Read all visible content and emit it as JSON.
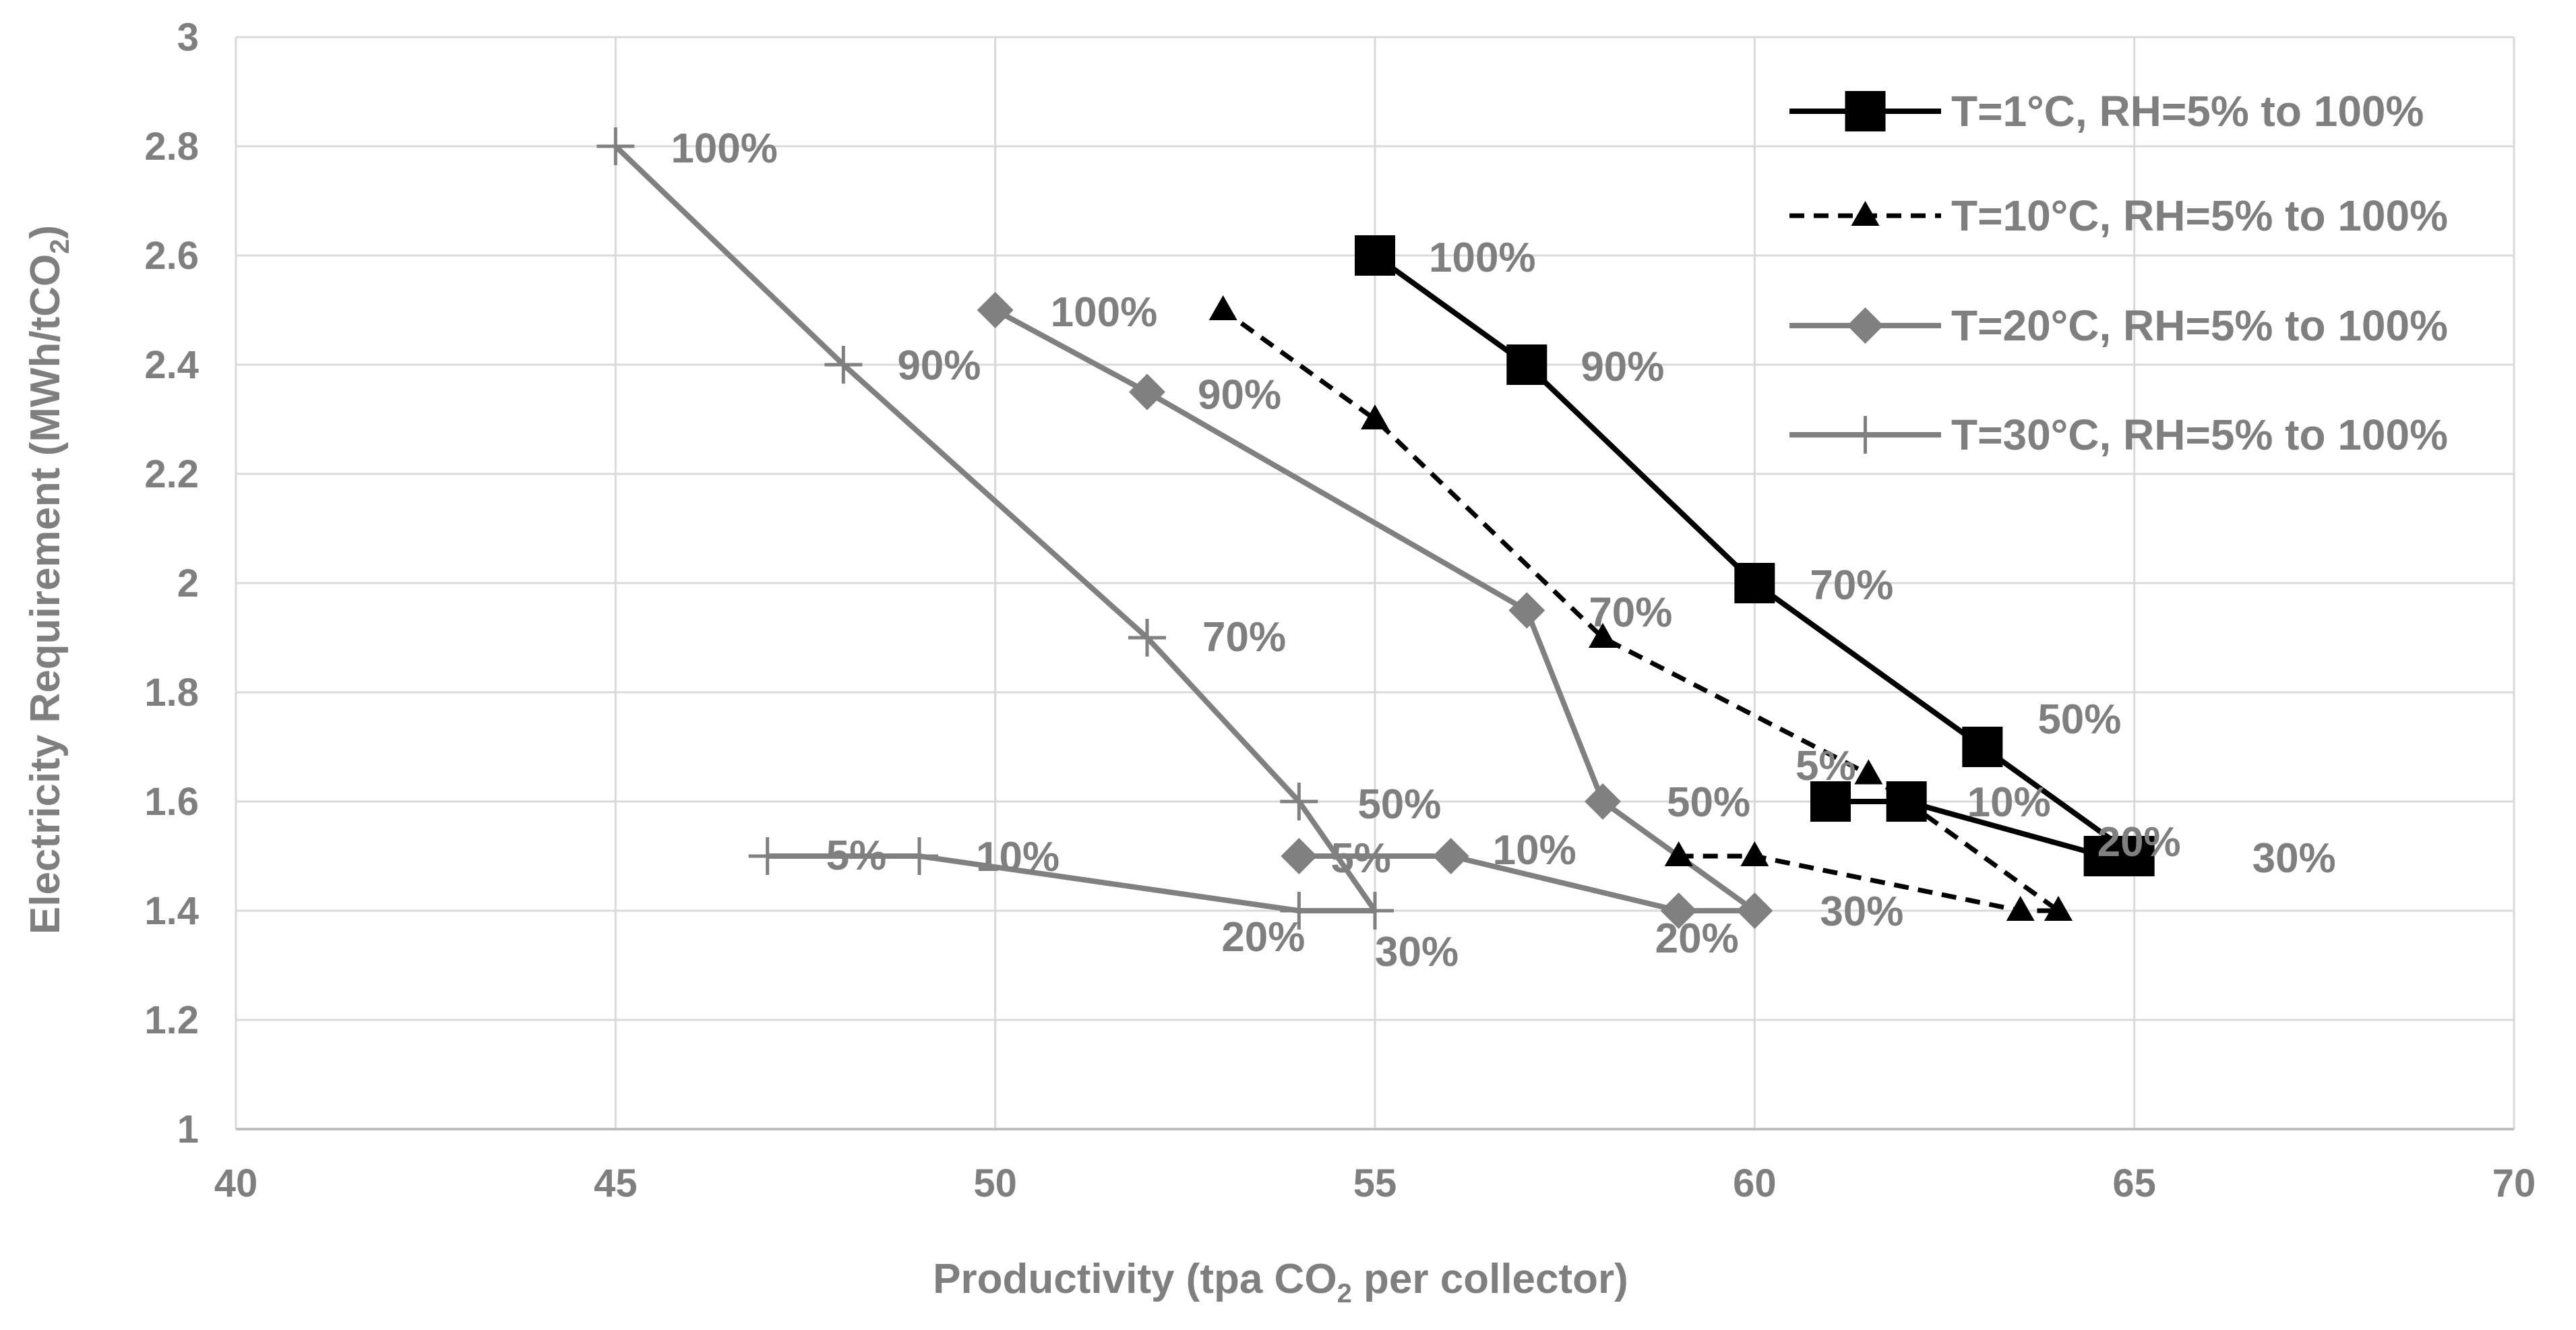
{
  "chart_data": {
    "type": "scatter",
    "title": "",
    "xlabel": {
      "before": "Productivity (tpa CO",
      "sub": "2",
      "after": " per collector)"
    },
    "ylabel": {
      "before": "Electricity Requirement (MWh/tCO",
      "sub": "2",
      "after": ")"
    },
    "xlim": [
      40,
      70
    ],
    "ylim": [
      1,
      3
    ],
    "x_ticks": [
      40,
      45,
      50,
      55,
      60,
      65,
      70
    ],
    "y_ticks": [
      1,
      1.2,
      1.4,
      1.6,
      1.8,
      2,
      2.2,
      2.4,
      2.6,
      2.8,
      3
    ],
    "grid": true,
    "legend_position": "top-right",
    "series": [
      {
        "name": "T=1°C, RH=5% to 100%",
        "color": "#000000",
        "line": "solid",
        "marker": "square",
        "points": [
          {
            "x": 61,
            "y": 1.6,
            "label": "5%"
          },
          {
            "x": 62,
            "y": 1.6,
            "label": "10%"
          },
          {
            "x": 64.6,
            "y": 1.5,
            "label": "20%"
          },
          {
            "x": 65,
            "y": 1.5,
            "label": "30%"
          },
          {
            "x": 63,
            "y": 1.7,
            "label": "50%"
          },
          {
            "x": 60,
            "y": 2.0,
            "label": "70%"
          },
          {
            "x": 57,
            "y": 2.4,
            "label": "90%"
          },
          {
            "x": 55,
            "y": 2.6,
            "label": "100%"
          }
        ]
      },
      {
        "name": "T=10°C, RH=5% to 100%",
        "color": "#000000",
        "line": "dashed",
        "marker": "triangle",
        "points": [
          {
            "x": 59,
            "y": 1.5,
            "label": ""
          },
          {
            "x": 60,
            "y": 1.5,
            "label": ""
          },
          {
            "x": 63.5,
            "y": 1.4,
            "label": ""
          },
          {
            "x": 64,
            "y": 1.4,
            "label": ""
          },
          {
            "x": 61.5,
            "y": 1.65,
            "label": ""
          },
          {
            "x": 58,
            "y": 1.9,
            "label": ""
          },
          {
            "x": 55,
            "y": 2.3,
            "label": ""
          },
          {
            "x": 53,
            "y": 2.5,
            "label": ""
          }
        ]
      },
      {
        "name": "T=20°C, RH=5% to 100%",
        "color": "#808080",
        "line": "solid",
        "marker": "diamond",
        "points": [
          {
            "x": 54,
            "y": 1.5,
            "label": "5%"
          },
          {
            "x": 56,
            "y": 1.5,
            "label": "10%"
          },
          {
            "x": 59,
            "y": 1.4,
            "label": "20%"
          },
          {
            "x": 60,
            "y": 1.4,
            "label": "30%"
          },
          {
            "x": 58,
            "y": 1.6,
            "label": "50%"
          },
          {
            "x": 57,
            "y": 1.95,
            "label": "70%"
          },
          {
            "x": 52,
            "y": 2.35,
            "label": "90%"
          },
          {
            "x": 50,
            "y": 2.5,
            "label": "100%"
          }
        ]
      },
      {
        "name": "T=30°C, RH=5% to 100%",
        "color": "#808080",
        "line": "solid",
        "marker": "plus",
        "points": [
          {
            "x": 47,
            "y": 1.5,
            "label": "5%"
          },
          {
            "x": 49,
            "y": 1.5,
            "label": "10%"
          },
          {
            "x": 54,
            "y": 1.4,
            "label": "20%"
          },
          {
            "x": 55,
            "y": 1.4,
            "label": "30%"
          },
          {
            "x": 54,
            "y": 1.6,
            "label": "50%"
          },
          {
            "x": 52,
            "y": 1.9,
            "label": "70%"
          },
          {
            "x": 48,
            "y": 2.4,
            "label": "90%"
          },
          {
            "x": 45,
            "y": 2.8,
            "label": "100%"
          }
        ]
      }
    ]
  }
}
